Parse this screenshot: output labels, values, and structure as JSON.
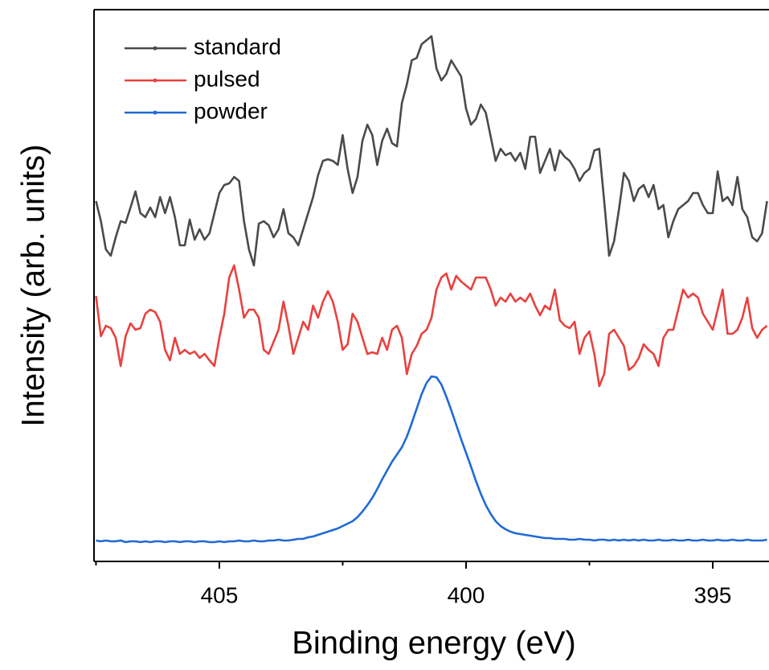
{
  "chart_data": {
    "type": "line",
    "x_label": "Binding energy (eV)",
    "y_label": "Intensity (arb. units)",
    "x": [
      407.5,
      407.4,
      407.3,
      407.2,
      407.1,
      407.0,
      406.9,
      406.8,
      406.7,
      406.6,
      406.5,
      406.4,
      406.3,
      406.2,
      406.1,
      406.0,
      405.9,
      405.8,
      405.7,
      405.6,
      405.5,
      405.4,
      405.3,
      405.2,
      405.1,
      405.0,
      404.9,
      404.8,
      404.7,
      404.6,
      404.5,
      404.4,
      404.3,
      404.2,
      404.1,
      404.0,
      403.9,
      403.8,
      403.7,
      403.6,
      403.5,
      403.4,
      403.3,
      403.2,
      403.1,
      403.0,
      402.9,
      402.8,
      402.7,
      402.6,
      402.5,
      402.4,
      402.3,
      402.2,
      402.1,
      402.0,
      401.9,
      401.8,
      401.7,
      401.6,
      401.5,
      401.4,
      401.3,
      401.2,
      401.1,
      401.0,
      400.9,
      400.8,
      400.7,
      400.6,
      400.5,
      400.4,
      400.3,
      400.2,
      400.1,
      400.0,
      399.9,
      399.8,
      399.7,
      399.6,
      399.5,
      399.4,
      399.3,
      399.2,
      399.1,
      399.0,
      398.9,
      398.8,
      398.7,
      398.6,
      398.5,
      398.4,
      398.3,
      398.2,
      398.1,
      398.0,
      397.9,
      397.8,
      397.7,
      397.6,
      397.5,
      397.4,
      397.3,
      397.2,
      397.1,
      397.0,
      396.9,
      396.8,
      396.7,
      396.6,
      396.5,
      396.4,
      396.3,
      396.2,
      396.1,
      396.0,
      395.9,
      395.8,
      395.7,
      395.6,
      395.5,
      395.4,
      395.3,
      395.2,
      395.1,
      395.0,
      394.9,
      394.8,
      394.7,
      394.6,
      394.5,
      394.4,
      394.3,
      394.2,
      394.1,
      394.0,
      393.9
    ],
    "xlim": [
      407.54,
      393.86
    ],
    "xticks": [
      405,
      400,
      395
    ],
    "xminorticks": [
      407.5,
      402.5,
      397.5
    ],
    "ylim": [
      0,
      686
    ],
    "legend": "upper left",
    "series": [
      {
        "name": "standard",
        "color": "#4a4a4a",
        "values": [
          448,
          423,
          388,
          380,
          403,
          423,
          421,
          440,
          460,
          433,
          428,
          440,
          428,
          453,
          433,
          453,
          428,
          393,
          393,
          425,
          400,
          413,
          400,
          408,
          433,
          458,
          468,
          470,
          478,
          473,
          423,
          388,
          368,
          420,
          423,
          418,
          403,
          413,
          438,
          408,
          403,
          393,
          413,
          433,
          453,
          480,
          498,
          500,
          498,
          493,
          530,
          488,
          458,
          478,
          523,
          543,
          530,
          493,
          523,
          538,
          520,
          516,
          570,
          593,
          623,
          626,
          643,
          648,
          653,
          613,
          598,
          606,
          623,
          613,
          603,
          563,
          543,
          550,
          568,
          558,
          528,
          498,
          513,
          505,
          508,
          498,
          508,
          488,
          528,
          528,
          483,
          498,
          513,
          486,
          511,
          503,
          498,
          488,
          473,
          483,
          488,
          511,
          513,
          448,
          380,
          398,
          438,
          483,
          473,
          448,
          463,
          468,
          453,
          468,
          438,
          443,
          403,
          423,
          438,
          443,
          448,
          458,
          458,
          443,
          433,
          433,
          485,
          448,
          453,
          443,
          478,
          438,
          428,
          403,
          398,
          408,
          448
        ]
      },
      {
        "name": "pulsed",
        "color": "#e8413f",
        "values": [
          330,
          280,
          293,
          290,
          278,
          243,
          280,
          296,
          288,
          290,
          308,
          313,
          310,
          298,
          263,
          250,
          278,
          258,
          263,
          258,
          261,
          253,
          258,
          250,
          243,
          278,
          308,
          353,
          368,
          338,
          303,
          313,
          313,
          303,
          263,
          258,
          273,
          288,
          323,
          293,
          258,
          278,
          298,
          288,
          318,
          303,
          323,
          336,
          323,
          298,
          263,
          270,
          308,
          298,
          278,
          258,
          260,
          258,
          278,
          263,
          288,
          293,
          278,
          233,
          258,
          268,
          283,
          288,
          303,
          338,
          353,
          358,
          338,
          355,
          348,
          343,
          338,
          353,
          353,
          353,
          338,
          318,
          328,
          323,
          333,
          323,
          328,
          323,
          333,
          318,
          306,
          318,
          313,
          338,
          300,
          293,
          290,
          298,
          258,
          278,
          286,
          258,
          218,
          233,
          283,
          288,
          278,
          268,
          238,
          243,
          253,
          270,
          263,
          258,
          243,
          278,
          288,
          288,
          313,
          338,
          328,
          333,
          328,
          308,
          298,
          288,
          313,
          338,
          283,
          283,
          288,
          303,
          328,
          290,
          278,
          288,
          293
        ]
      },
      {
        "name": "powder",
        "color": "#1f6ad4",
        "values": [
          26,
          25,
          26,
          25,
          25,
          26,
          24,
          25,
          25,
          24,
          25,
          24,
          25,
          25,
          24,
          25,
          25,
          24,
          25,
          25,
          24,
          25,
          25,
          24,
          24,
          25,
          24,
          25,
          25,
          26,
          25,
          25,
          26,
          25,
          25,
          26,
          26,
          27,
          26,
          26,
          27,
          28,
          28,
          30,
          31,
          33,
          35,
          37,
          39,
          41,
          44,
          47,
          50,
          55,
          62,
          70,
          79,
          90,
          102,
          113,
          124,
          133,
          142,
          155,
          172,
          190,
          208,
          222,
          230,
          229,
          220,
          205,
          188,
          170,
          152,
          135,
          118,
          100,
          84,
          70,
          59,
          50,
          44,
          40,
          37,
          35,
          34,
          33,
          32,
          31,
          30,
          29,
          29,
          28,
          28,
          28,
          27,
          27,
          28,
          27,
          27,
          26,
          27,
          27,
          26,
          27,
          26,
          27,
          26,
          27,
          26,
          27,
          26,
          26,
          27,
          26,
          26,
          27,
          26,
          26,
          27,
          26,
          26,
          27,
          26,
          26,
          27,
          26,
          26,
          27,
          26,
          26,
          27,
          26,
          26,
          26,
          27
        ]
      }
    ]
  }
}
